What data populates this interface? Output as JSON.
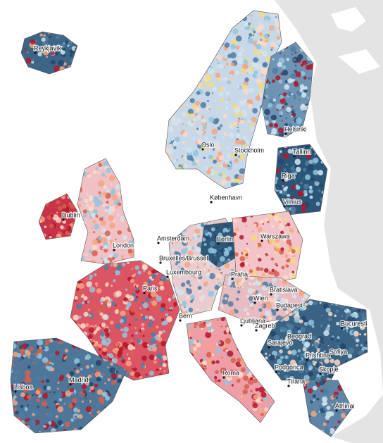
{
  "cities": [
    {
      "name": "Reykjavík"
    },
    {
      "name": "Oslo"
    },
    {
      "name": "Stockholm"
    },
    {
      "name": "Helsinki"
    },
    {
      "name": "Tallinn"
    },
    {
      "name": "Riga"
    },
    {
      "name": "Vilnius"
    },
    {
      "name": "København"
    },
    {
      "name": "Dublin"
    },
    {
      "name": "London"
    },
    {
      "name": "Amsterdam"
    },
    {
      "name": "Berlin"
    },
    {
      "name": "Warszawa"
    },
    {
      "name": "Bruxelles/Brussel"
    },
    {
      "name": "Luxembourg"
    },
    {
      "name": "Praha"
    },
    {
      "name": "Paris"
    },
    {
      "name": "Bratislava"
    },
    {
      "name": "Wien"
    },
    {
      "name": "Budapest"
    },
    {
      "name": "Bern"
    },
    {
      "name": "Ljubljana"
    },
    {
      "name": "Zagreb"
    },
    {
      "name": "București"
    },
    {
      "name": "Beograd"
    },
    {
      "name": "Sarajevo"
    },
    {
      "name": "Sofiya"
    },
    {
      "name": "Prishtina"
    },
    {
      "name": "Podgorica"
    },
    {
      "name": "Skopje"
    },
    {
      "name": "Tirana"
    },
    {
      "name": "Roma"
    },
    {
      "name": "Madrid"
    },
    {
      "name": "Lisboa"
    },
    {
      "name": "Athinai"
    }
  ]
}
